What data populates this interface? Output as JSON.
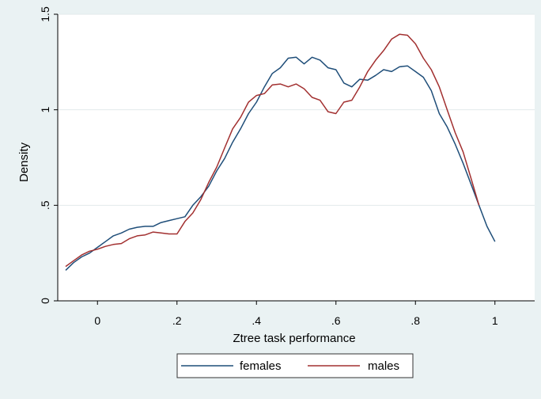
{
  "chart_data": {
    "type": "line",
    "xlabel": "Ztree task performance",
    "ylabel": "Density",
    "xlim": [
      -0.1,
      1.1
    ],
    "ylim": [
      0,
      1.5
    ],
    "xticks": [
      0,
      0.2,
      0.4,
      0.6,
      0.8,
      1
    ],
    "xtick_labels": [
      "0",
      ".2",
      ".4",
      ".6",
      ".8",
      "1"
    ],
    "yticks": [
      0,
      0.5,
      1,
      1.5
    ],
    "ytick_labels": [
      "0",
      ".5",
      "1",
      "1.5"
    ],
    "grid": true,
    "legend_position": "bottom",
    "colors": {
      "females": "#1f4e79",
      "males": "#a23030",
      "plot_bg": "#ffffff",
      "page_bg": "#eaf2f3",
      "grid": "#e3eaeb"
    },
    "series": [
      {
        "name": "females",
        "points": [
          [
            -0.08,
            0.16
          ],
          [
            -0.06,
            0.2
          ],
          [
            -0.04,
            0.23
          ],
          [
            -0.02,
            0.25
          ],
          [
            0.0,
            0.28
          ],
          [
            0.02,
            0.31
          ],
          [
            0.04,
            0.34
          ],
          [
            0.06,
            0.355
          ],
          [
            0.08,
            0.375
          ],
          [
            0.1,
            0.385
          ],
          [
            0.12,
            0.39
          ],
          [
            0.14,
            0.39
          ],
          [
            0.16,
            0.41
          ],
          [
            0.18,
            0.42
          ],
          [
            0.2,
            0.43
          ],
          [
            0.22,
            0.44
          ],
          [
            0.24,
            0.5
          ],
          [
            0.26,
            0.545
          ],
          [
            0.28,
            0.6
          ],
          [
            0.3,
            0.68
          ],
          [
            0.32,
            0.745
          ],
          [
            0.34,
            0.83
          ],
          [
            0.36,
            0.9
          ],
          [
            0.38,
            0.98
          ],
          [
            0.4,
            1.04
          ],
          [
            0.42,
            1.12
          ],
          [
            0.44,
            1.19
          ],
          [
            0.46,
            1.22
          ],
          [
            0.48,
            1.27
          ],
          [
            0.5,
            1.275
          ],
          [
            0.52,
            1.24
          ],
          [
            0.54,
            1.275
          ],
          [
            0.56,
            1.26
          ],
          [
            0.58,
            1.22
          ],
          [
            0.6,
            1.21
          ],
          [
            0.62,
            1.14
          ],
          [
            0.64,
            1.12
          ],
          [
            0.66,
            1.16
          ],
          [
            0.68,
            1.155
          ],
          [
            0.7,
            1.18
          ],
          [
            0.72,
            1.21
          ],
          [
            0.74,
            1.2
          ],
          [
            0.76,
            1.225
          ],
          [
            0.78,
            1.23
          ],
          [
            0.8,
            1.2
          ],
          [
            0.82,
            1.17
          ],
          [
            0.84,
            1.1
          ],
          [
            0.86,
            0.98
          ],
          [
            0.88,
            0.91
          ],
          [
            0.9,
            0.82
          ],
          [
            0.92,
            0.72
          ],
          [
            0.94,
            0.61
          ],
          [
            0.96,
            0.5
          ],
          [
            0.98,
            0.39
          ],
          [
            1.0,
            0.31
          ]
        ]
      },
      {
        "name": "males",
        "points": [
          [
            -0.08,
            0.18
          ],
          [
            -0.06,
            0.21
          ],
          [
            -0.04,
            0.24
          ],
          [
            -0.02,
            0.26
          ],
          [
            0.0,
            0.27
          ],
          [
            0.02,
            0.285
          ],
          [
            0.04,
            0.295
          ],
          [
            0.06,
            0.3
          ],
          [
            0.08,
            0.325
          ],
          [
            0.1,
            0.34
          ],
          [
            0.12,
            0.345
          ],
          [
            0.14,
            0.36
          ],
          [
            0.16,
            0.355
          ],
          [
            0.18,
            0.35
          ],
          [
            0.2,
            0.35
          ],
          [
            0.22,
            0.415
          ],
          [
            0.24,
            0.46
          ],
          [
            0.26,
            0.53
          ],
          [
            0.28,
            0.62
          ],
          [
            0.3,
            0.7
          ],
          [
            0.32,
            0.8
          ],
          [
            0.34,
            0.9
          ],
          [
            0.36,
            0.96
          ],
          [
            0.38,
            1.04
          ],
          [
            0.4,
            1.075
          ],
          [
            0.42,
            1.085
          ],
          [
            0.44,
            1.13
          ],
          [
            0.46,
            1.135
          ],
          [
            0.48,
            1.12
          ],
          [
            0.5,
            1.135
          ],
          [
            0.52,
            1.11
          ],
          [
            0.54,
            1.065
          ],
          [
            0.56,
            1.05
          ],
          [
            0.58,
            0.99
          ],
          [
            0.6,
            0.98
          ],
          [
            0.62,
            1.04
          ],
          [
            0.64,
            1.05
          ],
          [
            0.66,
            1.12
          ],
          [
            0.68,
            1.2
          ],
          [
            0.7,
            1.26
          ],
          [
            0.72,
            1.31
          ],
          [
            0.74,
            1.37
          ],
          [
            0.76,
            1.395
          ],
          [
            0.78,
            1.39
          ],
          [
            0.8,
            1.345
          ],
          [
            0.82,
            1.27
          ],
          [
            0.84,
            1.21
          ],
          [
            0.86,
            1.12
          ],
          [
            0.88,
            1.0
          ],
          [
            0.9,
            0.88
          ],
          [
            0.92,
            0.78
          ],
          [
            0.94,
            0.64
          ],
          [
            0.96,
            0.5
          ]
        ]
      }
    ]
  }
}
